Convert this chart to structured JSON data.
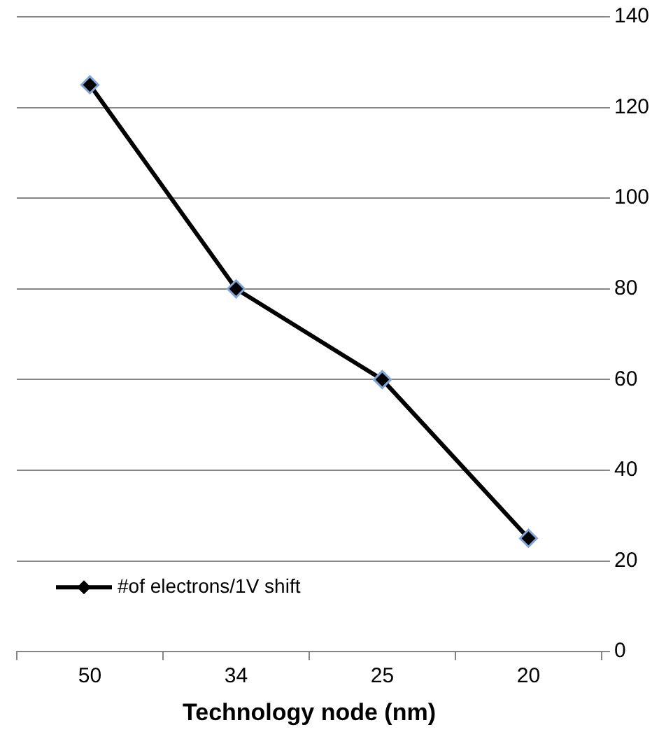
{
  "chart_data": {
    "type": "line",
    "xlabel": "Technology node (nm)",
    "categories": [
      "50",
      "34",
      "25",
      "20"
    ],
    "series": [
      {
        "name": "#of electrons/1V shift",
        "color": "#000000",
        "values": [
          125,
          80,
          60,
          25
        ]
      }
    ],
    "ylim": [
      0,
      140
    ],
    "yticks": [
      0,
      20,
      40,
      60,
      80,
      100,
      120,
      140
    ],
    "grid": "y",
    "legend": "bottom left",
    "marker": "diamond",
    "line_style": "solid"
  }
}
